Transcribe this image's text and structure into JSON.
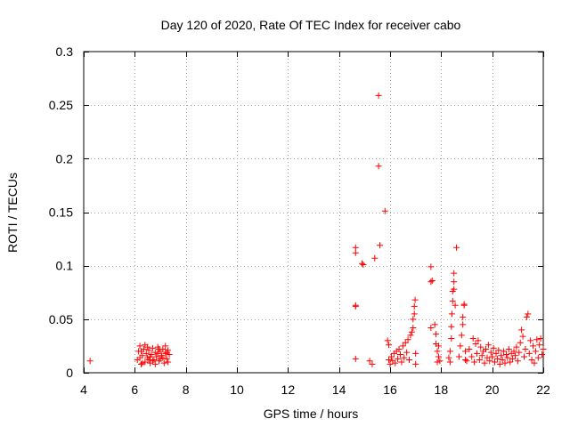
{
  "chart_data": {
    "type": "scatter",
    "title": "Day 120 of 2020, Rate Of TEC Index for receiver cabo",
    "xlabel": "GPS time / hours",
    "ylabel": "ROTI / TECUs",
    "xlim": [
      4,
      22
    ],
    "ylim": [
      0,
      0.3
    ],
    "xticks": [
      4,
      6,
      8,
      10,
      12,
      14,
      16,
      18,
      20,
      22
    ],
    "yticks": [
      0,
      0.05,
      0.1,
      0.15,
      0.2,
      0.25,
      0.3
    ],
    "ytick_labels": [
      "0",
      "0.05",
      "0.1",
      "0.15",
      "0.2",
      "0.25",
      "0.3"
    ],
    "grid": true,
    "marker": "+",
    "color": "#ff0000",
    "points": [
      [
        4.25,
        0.011
      ],
      [
        6.1,
        0.012
      ],
      [
        6.15,
        0.02
      ],
      [
        6.2,
        0.025
      ],
      [
        6.25,
        0.008
      ],
      [
        6.3,
        0.016
      ],
      [
        6.35,
        0.022
      ],
      [
        6.4,
        0.01
      ],
      [
        6.45,
        0.018
      ],
      [
        6.5,
        0.014
      ],
      [
        6.55,
        0.021
      ],
      [
        6.6,
        0.009
      ],
      [
        6.65,
        0.017
      ],
      [
        6.7,
        0.023
      ],
      [
        6.75,
        0.012
      ],
      [
        6.8,
        0.019
      ],
      [
        6.85,
        0.015
      ],
      [
        6.9,
        0.024
      ],
      [
        6.95,
        0.011
      ],
      [
        7.0,
        0.02
      ],
      [
        7.05,
        0.016
      ],
      [
        7.1,
        0.022
      ],
      [
        7.15,
        0.009
      ],
      [
        7.2,
        0.018
      ],
      [
        7.25,
        0.013
      ],
      [
        7.3,
        0.021
      ],
      [
        7.35,
        0.017
      ],
      [
        6.2,
        0.014
      ],
      [
        6.4,
        0.026
      ],
      [
        6.6,
        0.015
      ],
      [
        6.8,
        0.008
      ],
      [
        7.0,
        0.013
      ],
      [
        7.2,
        0.025
      ],
      [
        7.3,
        0.01
      ],
      [
        6.3,
        0.009
      ],
      [
        6.5,
        0.024
      ],
      [
        6.7,
        0.011
      ],
      [
        6.9,
        0.018
      ],
      [
        7.1,
        0.014
      ],
      [
        6.25,
        0.02
      ],
      [
        6.55,
        0.012
      ],
      [
        6.95,
        0.022
      ],
      [
        7.25,
        0.019
      ],
      [
        14.65,
        0.117
      ],
      [
        14.65,
        0.112
      ],
      [
        14.65,
        0.063
      ],
      [
        14.65,
        0.062
      ],
      [
        14.65,
        0.013
      ],
      [
        14.9,
        0.102
      ],
      [
        14.95,
        0.101
      ],
      [
        15.2,
        0.011
      ],
      [
        15.3,
        0.008
      ],
      [
        15.4,
        0.107
      ],
      [
        15.55,
        0.259
      ],
      [
        15.55,
        0.193
      ],
      [
        15.6,
        0.119
      ],
      [
        15.8,
        0.151
      ],
      [
        15.9,
        0.03
      ],
      [
        15.95,
        0.026
      ],
      [
        15.95,
        0.012
      ],
      [
        16.0,
        0.008
      ],
      [
        16.05,
        0.015
      ],
      [
        16.1,
        0.011
      ],
      [
        16.15,
        0.018
      ],
      [
        16.2,
        0.009
      ],
      [
        16.25,
        0.02
      ],
      [
        16.3,
        0.013
      ],
      [
        16.35,
        0.022
      ],
      [
        16.4,
        0.017
      ],
      [
        16.45,
        0.01
      ],
      [
        16.5,
        0.025
      ],
      [
        16.55,
        0.014
      ],
      [
        16.6,
        0.028
      ],
      [
        16.65,
        0.019
      ],
      [
        16.7,
        0.031
      ],
      [
        16.75,
        0.012
      ],
      [
        16.8,
        0.035
      ],
      [
        16.85,
        0.038
      ],
      [
        16.9,
        0.05
      ],
      [
        16.95,
        0.062
      ],
      [
        16.98,
        0.068
      ],
      [
        16.95,
        0.055
      ],
      [
        16.9,
        0.042
      ],
      [
        17.0,
        0.008
      ],
      [
        17.0,
        0.018
      ],
      [
        17.6,
        0.099
      ],
      [
        17.65,
        0.086
      ],
      [
        17.6,
        0.085
      ],
      [
        17.6,
        0.042
      ],
      [
        17.75,
        0.045
      ],
      [
        17.8,
        0.036
      ],
      [
        17.8,
        0.027
      ],
      [
        17.85,
        0.02
      ],
      [
        17.9,
        0.015
      ],
      [
        17.95,
        0.011
      ],
      [
        17.85,
        0.01
      ],
      [
        17.9,
        0.025
      ],
      [
        18.3,
        0.014
      ],
      [
        18.35,
        0.02
      ],
      [
        18.4,
        0.032
      ],
      [
        18.4,
        0.043
      ],
      [
        18.42,
        0.055
      ],
      [
        18.45,
        0.067
      ],
      [
        18.45,
        0.076
      ],
      [
        18.5,
        0.085
      ],
      [
        18.5,
        0.093
      ],
      [
        18.5,
        0.078
      ],
      [
        18.55,
        0.063
      ],
      [
        18.6,
        0.117
      ],
      [
        18.35,
        0.01
      ],
      [
        18.7,
        0.015
      ],
      [
        18.75,
        0.025
      ],
      [
        18.8,
        0.035
      ],
      [
        18.85,
        0.045
      ],
      [
        18.85,
        0.052
      ],
      [
        18.9,
        0.063
      ],
      [
        18.9,
        0.064
      ],
      [
        18.95,
        0.012
      ],
      [
        18.95,
        0.02
      ],
      [
        19.0,
        0.011
      ],
      [
        19.1,
        0.022
      ],
      [
        19.2,
        0.015
      ],
      [
        19.25,
        0.032
      ],
      [
        19.3,
        0.01
      ],
      [
        19.35,
        0.027
      ],
      [
        19.4,
        0.018
      ],
      [
        19.45,
        0.03
      ],
      [
        19.5,
        0.012
      ],
      [
        19.55,
        0.024
      ],
      [
        19.6,
        0.016
      ],
      [
        19.65,
        0.02
      ],
      [
        19.7,
        0.009
      ],
      [
        19.75,
        0.022
      ],
      [
        19.8,
        0.014
      ],
      [
        19.85,
        0.026
      ],
      [
        19.9,
        0.011
      ],
      [
        19.95,
        0.019
      ],
      [
        20.0,
        0.015
      ],
      [
        20.05,
        0.023
      ],
      [
        20.1,
        0.01
      ],
      [
        20.15,
        0.018
      ],
      [
        20.2,
        0.013
      ],
      [
        20.25,
        0.021
      ],
      [
        20.3,
        0.008
      ],
      [
        20.35,
        0.016
      ],
      [
        20.4,
        0.012
      ],
      [
        20.45,
        0.02
      ],
      [
        20.5,
        0.009
      ],
      [
        20.55,
        0.017
      ],
      [
        20.6,
        0.014
      ],
      [
        20.65,
        0.022
      ],
      [
        20.7,
        0.01
      ],
      [
        20.75,
        0.018
      ],
      [
        20.8,
        0.013
      ],
      [
        20.85,
        0.02
      ],
      [
        20.9,
        0.016
      ],
      [
        20.95,
        0.024
      ],
      [
        21.0,
        0.011
      ],
      [
        21.05,
        0.019
      ],
      [
        21.1,
        0.028
      ],
      [
        21.15,
        0.04
      ],
      [
        21.2,
        0.034
      ],
      [
        21.25,
        0.015
      ],
      [
        21.3,
        0.022
      ],
      [
        21.35,
        0.052
      ],
      [
        21.4,
        0.055
      ],
      [
        21.45,
        0.018
      ],
      [
        21.5,
        0.03
      ],
      [
        21.55,
        0.012
      ],
      [
        21.6,
        0.025
      ],
      [
        21.65,
        0.009
      ],
      [
        21.7,
        0.02
      ],
      [
        21.75,
        0.031
      ],
      [
        21.8,
        0.014
      ],
      [
        21.85,
        0.026
      ],
      [
        21.9,
        0.032
      ],
      [
        21.95,
        0.017
      ],
      [
        22.0,
        0.022
      ]
    ]
  }
}
